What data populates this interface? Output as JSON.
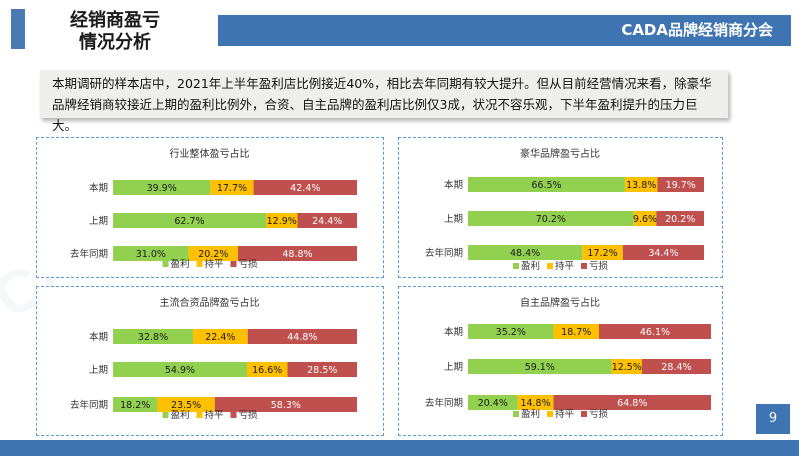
{
  "header": {
    "title_line1": "经销商盈亏",
    "title_line2": "情况分析",
    "brand": "CADA品牌经销商分会"
  },
  "summary": "本期调研的样本店中，2021年上半年盈利店比例接近40%，相比去年同期有较大提升。但从目前经营情况来看，除豪华品牌经销商较接近上期的盈利比例外，合资、自主品牌的盈利店比例仅3成，状况不容乐观，下半年盈利提升的压力巨大。",
  "page_number": "9",
  "colors": {
    "profit": "#92d050",
    "even": "#ffc000",
    "loss": "#c0504d",
    "accent": "#3e74b2"
  },
  "chart_data": [
    {
      "type": "bar",
      "stacked": true,
      "orientation": "horizontal",
      "title": "行业整体盈亏占比",
      "categories": [
        "本期",
        "上期",
        "去年同期"
      ],
      "series": [
        {
          "name": "盈利",
          "values": [
            39.9,
            62.7,
            31.0
          ],
          "labels": [
            "39.9%",
            "62.7%",
            "31.0%"
          ]
        },
        {
          "name": "持平",
          "values": [
            17.7,
            12.9,
            20.2
          ],
          "labels": [
            "17.7%",
            "12.9%",
            "20.2%"
          ]
        },
        {
          "name": "亏损",
          "values": [
            42.4,
            24.4,
            48.8
          ],
          "labels": [
            "42.4%",
            "24.4%",
            "48.8%"
          ]
        }
      ],
      "legend": "bottom"
    },
    {
      "type": "bar",
      "stacked": true,
      "orientation": "horizontal",
      "title": "豪华品牌盈亏占比",
      "categories": [
        "本期",
        "上期",
        "去年同期"
      ],
      "series": [
        {
          "name": "盈利",
          "values": [
            66.5,
            70.2,
            48.4
          ],
          "labels": [
            "66.5%",
            "70.2%",
            "48.4%"
          ]
        },
        {
          "name": "持平",
          "values": [
            13.8,
            9.6,
            17.2
          ],
          "labels": [
            "13.8%",
            "9.6%",
            "17.2%"
          ]
        },
        {
          "name": "亏损",
          "values": [
            19.7,
            20.2,
            34.4
          ],
          "labels": [
            "19.7%",
            "20.2%",
            "34.4%"
          ]
        }
      ],
      "legend": "bottom"
    },
    {
      "type": "bar",
      "stacked": true,
      "orientation": "horizontal",
      "title": "主流合资品牌盈亏占比",
      "categories": [
        "本期",
        "上期",
        "去年同期"
      ],
      "series": [
        {
          "name": "盈利",
          "values": [
            32.8,
            54.9,
            18.2
          ],
          "labels": [
            "32.8%",
            "54.9%",
            "18.2%"
          ]
        },
        {
          "name": "持平",
          "values": [
            22.4,
            16.6,
            23.5
          ],
          "labels": [
            "22.4%",
            "16.6%",
            "23.5%"
          ]
        },
        {
          "name": "亏损",
          "values": [
            44.8,
            28.5,
            58.3
          ],
          "labels": [
            "44.8%",
            "28.5%",
            "58.3%"
          ]
        }
      ],
      "legend": "bottom"
    },
    {
      "type": "bar",
      "stacked": true,
      "orientation": "horizontal",
      "title": "自主品牌盈亏占比",
      "categories": [
        "本期",
        "上期",
        "去年同期"
      ],
      "series": [
        {
          "name": "盈利",
          "values": [
            35.2,
            59.1,
            20.4
          ],
          "labels": [
            "35.2%",
            "59.1%",
            "20.4%"
          ]
        },
        {
          "name": "持平",
          "values": [
            18.7,
            12.5,
            14.8
          ],
          "labels": [
            "18.7%",
            "12.5%",
            "14.8%"
          ]
        },
        {
          "name": "亏损",
          "values": [
            46.1,
            28.4,
            64.8
          ],
          "labels": [
            "46.1%",
            "28.4%",
            "64.8%"
          ]
        }
      ],
      "legend": "bottom"
    }
  ]
}
